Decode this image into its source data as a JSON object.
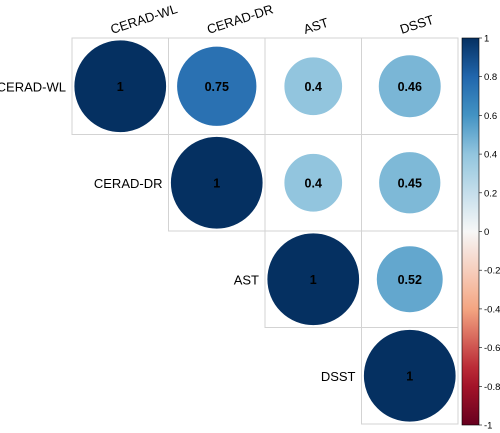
{
  "chart_data": {
    "type": "heatmap",
    "variables": [
      "CERAD-WL",
      "CERAD-DR",
      "AST",
      "DSST"
    ],
    "matrix_upper": [
      [
        1,
        0.75,
        0.4,
        0.46
      ],
      [
        null,
        1,
        0.4,
        0.45
      ],
      [
        null,
        null,
        1,
        0.52
      ],
      [
        null,
        null,
        null,
        1
      ]
    ],
    "cell_labels": [
      [
        "1",
        "0.75",
        "0.4",
        "0.46"
      ],
      [
        "",
        "1",
        "0.4",
        "0.45"
      ],
      [
        "",
        "",
        "1",
        "0.52"
      ],
      [
        "",
        "",
        "",
        "1"
      ]
    ],
    "colorbar": {
      "range": [
        -1,
        1
      ],
      "ticks": [
        "1",
        "0.8",
        "0.6",
        "0.4",
        "0.2",
        "0",
        "-0.2",
        "-0.4",
        "-0.6",
        "-0.8",
        "-1"
      ]
    },
    "colors": {
      "strong_positive": "#053061",
      "positive": "#2166ac",
      "mid_positive": "#4393c3",
      "light_positive": "#92c5de",
      "neutral": "#f7f7f7",
      "light_negative": "#f4a582",
      "negative": "#b2182b",
      "strong_negative": "#67001f"
    }
  }
}
